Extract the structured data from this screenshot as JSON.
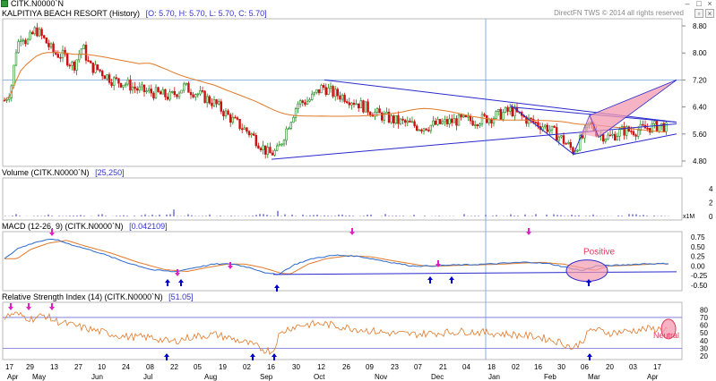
{
  "window": {
    "title": "CITK.N0000`N",
    "copyright": "DirectFN TWS © 2014 all rights reserved"
  },
  "price_pane": {
    "name": "KALPITIYA BEACH RESORT (History)",
    "ohlc": "[O: 5.70,  H: 5.70,  L: 5.70,  C: 5.70]",
    "y_ticks": [
      "8.80",
      "8.00",
      "7.20",
      "6.40",
      "5.60",
      "4.80"
    ]
  },
  "volume_pane": {
    "name": "Volume (CITK.N0000`N)",
    "value": "[25,250]",
    "y_ticks": [
      "4",
      "2",
      "0"
    ],
    "scale_label": "x1M"
  },
  "macd_pane": {
    "name": "MACD (12-26, 9)  (CITK.N0000`N)",
    "value": "[0.042109]",
    "y_ticks": [
      "0.75",
      "0.50",
      "0.25",
      "0.00",
      "-0.25",
      "-0.50"
    ],
    "annotation": "Positive"
  },
  "rsi_pane": {
    "name": "Relative Strength Index (14)  (CITK.N0000`N)",
    "value": "[51.05]",
    "y_ticks": [
      "80",
      "70",
      "60",
      "50",
      "40",
      "30",
      "20"
    ],
    "annotation": "Neutral"
  },
  "x_axis": {
    "day_labels": [
      "17",
      "29",
      "13",
      "27",
      "10",
      "24",
      "08",
      "22",
      "05",
      "19",
      "02",
      "16",
      "30",
      "12",
      "26",
      "09",
      "23",
      "07",
      "21",
      "04",
      "18",
      "02",
      "16",
      "30",
      "06",
      "20",
      "03",
      "17",
      "03",
      "17",
      "31",
      "14"
    ],
    "month_labels": [
      "Apr",
      "May",
      "Jun",
      "Jul",
      "Aug",
      "Sep",
      "Oct",
      "Nov",
      "Dec",
      "Jan",
      "Feb",
      "Mar",
      "Apr"
    ]
  },
  "colors": {
    "candle_up": "#1a8a1a",
    "candle_down": "#cc1111",
    "moving_average": "#e07a2a",
    "trendline": "#2a2acc",
    "pattern_fill": "#f39ab0",
    "arrow_up": "#0000cc",
    "arrow_down": "#e020c0",
    "rsi_line": "#e07a2a",
    "macd_line": "#2a6acc",
    "signal_line": "#e07a2a"
  }
}
